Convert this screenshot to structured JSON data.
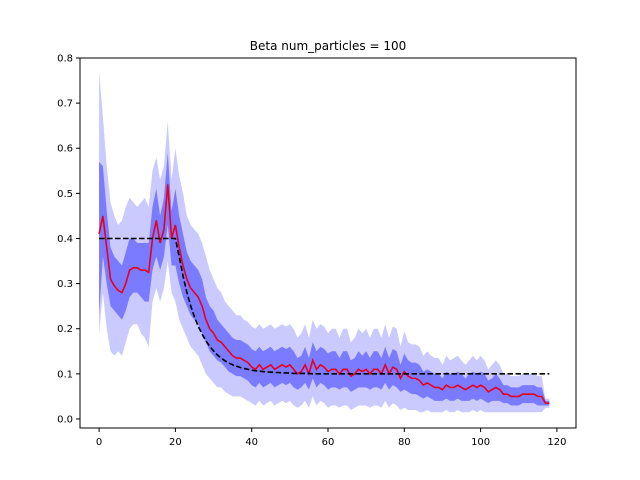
{
  "chart_data": {
    "type": "line",
    "title": "Beta  num_particles = 100",
    "xlabel": "",
    "ylabel": "",
    "xlim": [
      -5,
      125
    ],
    "ylim": [
      -0.02,
      0.8
    ],
    "xticks": [
      0,
      20,
      40,
      60,
      80,
      100,
      120
    ],
    "yticks": [
      0.0,
      0.1,
      0.2,
      0.3,
      0.4,
      0.5,
      0.6,
      0.7,
      0.8
    ],
    "grid": false,
    "legend": "none",
    "colors": {
      "estimate": "#e8001c",
      "true": "#000000",
      "inner_band": "#7b7bff",
      "outer_band": "#cacaff"
    },
    "x": [
      0,
      1,
      2,
      3,
      4,
      5,
      6,
      7,
      8,
      9,
      10,
      11,
      12,
      13,
      14,
      15,
      16,
      17,
      18,
      19,
      20,
      21,
      22,
      23,
      24,
      25,
      26,
      27,
      28,
      29,
      30,
      31,
      32,
      33,
      34,
      35,
      36,
      37,
      38,
      39,
      40,
      41,
      42,
      43,
      44,
      45,
      46,
      47,
      48,
      49,
      50,
      51,
      52,
      53,
      54,
      55,
      56,
      57,
      58,
      59,
      60,
      61,
      62,
      63,
      64,
      65,
      66,
      67,
      68,
      69,
      70,
      71,
      72,
      73,
      74,
      75,
      76,
      77,
      78,
      79,
      80,
      81,
      82,
      83,
      84,
      85,
      86,
      87,
      88,
      89,
      90,
      91,
      92,
      93,
      94,
      95,
      96,
      97,
      98,
      99,
      100,
      101,
      102,
      103,
      104,
      105,
      106,
      107,
      108,
      109,
      110,
      111,
      112,
      113,
      114,
      115,
      116,
      117,
      118
    ],
    "series": [
      {
        "role": "estimate",
        "values": [
          0.41,
          0.45,
          0.38,
          0.31,
          0.295,
          0.285,
          0.28,
          0.3,
          0.33,
          0.335,
          0.335,
          0.33,
          0.33,
          0.325,
          0.4,
          0.44,
          0.39,
          0.42,
          0.52,
          0.4,
          0.43,
          0.38,
          0.34,
          0.31,
          0.29,
          0.28,
          0.27,
          0.25,
          0.22,
          0.2,
          0.19,
          0.175,
          0.17,
          0.16,
          0.15,
          0.14,
          0.135,
          0.135,
          0.13,
          0.125,
          0.115,
          0.11,
          0.12,
          0.11,
          0.115,
          0.12,
          0.11,
          0.115,
          0.12,
          0.115,
          0.12,
          0.11,
          0.1,
          0.105,
          0.12,
          0.1,
          0.13,
          0.11,
          0.12,
          0.115,
          0.105,
          0.11,
          0.11,
          0.1,
          0.11,
          0.11,
          0.095,
          0.1,
          0.11,
          0.105,
          0.11,
          0.1,
          0.11,
          0.11,
          0.1,
          0.12,
          0.1,
          0.115,
          0.11,
          0.09,
          0.105,
          0.095,
          0.09,
          0.09,
          0.085,
          0.075,
          0.08,
          0.075,
          0.07,
          0.07,
          0.065,
          0.075,
          0.07,
          0.07,
          0.075,
          0.07,
          0.065,
          0.07,
          0.075,
          0.07,
          0.075,
          0.07,
          0.06,
          0.065,
          0.07,
          0.065,
          0.055,
          0.055,
          0.05,
          0.05,
          0.05,
          0.055,
          0.055,
          0.055,
          0.055,
          0.05,
          0.05,
          0.035,
          0.035
        ]
      },
      {
        "role": "true",
        "values": [
          0.4,
          0.4,
          0.4,
          0.4,
          0.4,
          0.4,
          0.4,
          0.4,
          0.4,
          0.4,
          0.4,
          0.4,
          0.4,
          0.4,
          0.4,
          0.4,
          0.4,
          0.4,
          0.4,
          0.4,
          0.4,
          0.36,
          0.317,
          0.281,
          0.251,
          0.226,
          0.205,
          0.188,
          0.173,
          0.161,
          0.151,
          0.142,
          0.135,
          0.129,
          0.124,
          0.12,
          0.117,
          0.114,
          0.112,
          0.11,
          0.108,
          0.107,
          0.106,
          0.105,
          0.104,
          0.104,
          0.103,
          0.103,
          0.102,
          0.102,
          0.102,
          0.101,
          0.101,
          0.101,
          0.101,
          0.101,
          0.1,
          0.1,
          0.1,
          0.1,
          0.1,
          0.1,
          0.1,
          0.1,
          0.1,
          0.1,
          0.1,
          0.1,
          0.1,
          0.1,
          0.1,
          0.1,
          0.1,
          0.1,
          0.1,
          0.1,
          0.1,
          0.1,
          0.1,
          0.1,
          0.1,
          0.1,
          0.1,
          0.1,
          0.1,
          0.1,
          0.1,
          0.1,
          0.1,
          0.1,
          0.1,
          0.1,
          0.1,
          0.1,
          0.1,
          0.1,
          0.1,
          0.1,
          0.1,
          0.1,
          0.1,
          0.1,
          0.1,
          0.1,
          0.1,
          0.1,
          0.1,
          0.1,
          0.1,
          0.1,
          0.1,
          0.1,
          0.1,
          0.1,
          0.1,
          0.1,
          0.1,
          0.1,
          0.1
        ]
      }
    ],
    "inner_band": {
      "lower": [
        0.23,
        0.36,
        0.3,
        0.25,
        0.24,
        0.23,
        0.22,
        0.24,
        0.27,
        0.28,
        0.28,
        0.27,
        0.26,
        0.26,
        0.33,
        0.36,
        0.33,
        0.36,
        0.43,
        0.34,
        0.34,
        0.3,
        0.27,
        0.25,
        0.23,
        0.22,
        0.21,
        0.19,
        0.17,
        0.15,
        0.14,
        0.13,
        0.125,
        0.115,
        0.105,
        0.1,
        0.095,
        0.095,
        0.09,
        0.085,
        0.075,
        0.07,
        0.08,
        0.07,
        0.075,
        0.08,
        0.07,
        0.075,
        0.08,
        0.075,
        0.08,
        0.07,
        0.065,
        0.07,
        0.08,
        0.065,
        0.09,
        0.07,
        0.08,
        0.075,
        0.065,
        0.07,
        0.07,
        0.065,
        0.07,
        0.07,
        0.06,
        0.065,
        0.07,
        0.07,
        0.07,
        0.065,
        0.07,
        0.07,
        0.065,
        0.08,
        0.065,
        0.075,
        0.07,
        0.06,
        0.065,
        0.06,
        0.055,
        0.055,
        0.05,
        0.045,
        0.05,
        0.045,
        0.04,
        0.04,
        0.04,
        0.045,
        0.04,
        0.04,
        0.045,
        0.04,
        0.04,
        0.04,
        0.045,
        0.04,
        0.045,
        0.04,
        0.035,
        0.04,
        0.04,
        0.04,
        0.035,
        0.035,
        0.03,
        0.03,
        0.03,
        0.035,
        0.035,
        0.035,
        0.035,
        0.03,
        0.03,
        0.03,
        0.03
      ],
      "upper": [
        0.57,
        0.56,
        0.46,
        0.38,
        0.36,
        0.35,
        0.34,
        0.37,
        0.4,
        0.4,
        0.39,
        0.39,
        0.39,
        0.39,
        0.47,
        0.51,
        0.45,
        0.49,
        0.59,
        0.46,
        0.51,
        0.45,
        0.41,
        0.37,
        0.35,
        0.34,
        0.33,
        0.31,
        0.27,
        0.25,
        0.24,
        0.22,
        0.21,
        0.2,
        0.19,
        0.18,
        0.175,
        0.175,
        0.17,
        0.165,
        0.155,
        0.15,
        0.16,
        0.15,
        0.155,
        0.16,
        0.15,
        0.155,
        0.16,
        0.155,
        0.16,
        0.15,
        0.135,
        0.14,
        0.16,
        0.135,
        0.17,
        0.15,
        0.16,
        0.155,
        0.145,
        0.15,
        0.15,
        0.135,
        0.15,
        0.15,
        0.13,
        0.135,
        0.15,
        0.14,
        0.15,
        0.135,
        0.15,
        0.15,
        0.135,
        0.16,
        0.135,
        0.155,
        0.15,
        0.12,
        0.145,
        0.13,
        0.125,
        0.125,
        0.12,
        0.105,
        0.11,
        0.105,
        0.1,
        0.1,
        0.09,
        0.105,
        0.1,
        0.1,
        0.105,
        0.1,
        0.09,
        0.1,
        0.105,
        0.1,
        0.105,
        0.1,
        0.085,
        0.09,
        0.1,
        0.09,
        0.075,
        0.075,
        0.07,
        0.07,
        0.07,
        0.075,
        0.075,
        0.075,
        0.075,
        0.07,
        0.07,
        0.04,
        0.04
      ]
    },
    "outer_band": {
      "lower": [
        0.19,
        0.28,
        0.2,
        0.15,
        0.14,
        0.15,
        0.14,
        0.17,
        0.2,
        0.21,
        0.21,
        0.19,
        0.18,
        0.16,
        0.26,
        0.29,
        0.26,
        0.29,
        0.35,
        0.28,
        0.26,
        0.22,
        0.2,
        0.18,
        0.16,
        0.15,
        0.14,
        0.12,
        0.1,
        0.09,
        0.08,
        0.07,
        0.07,
        0.06,
        0.055,
        0.05,
        0.05,
        0.05,
        0.045,
        0.04,
        0.035,
        0.03,
        0.04,
        0.03,
        0.035,
        0.04,
        0.03,
        0.035,
        0.04,
        0.035,
        0.04,
        0.03,
        0.025,
        0.03,
        0.04,
        0.025,
        0.05,
        0.03,
        0.04,
        0.035,
        0.025,
        0.03,
        0.03,
        0.025,
        0.03,
        0.03,
        0.02,
        0.025,
        0.03,
        0.03,
        0.03,
        0.025,
        0.03,
        0.03,
        0.025,
        0.04,
        0.025,
        0.035,
        0.03,
        0.02,
        0.025,
        0.02,
        0.02,
        0.02,
        0.015,
        0.015,
        0.02,
        0.015,
        0.015,
        0.015,
        0.015,
        0.02,
        0.015,
        0.015,
        0.02,
        0.015,
        0.015,
        0.015,
        0.02,
        0.015,
        0.02,
        0.015,
        0.015,
        0.015,
        0.015,
        0.015,
        0.015,
        0.015,
        0.015,
        0.015,
        0.015,
        0.015,
        0.015,
        0.015,
        0.015,
        0.015,
        0.015,
        0.025,
        0.025
      ],
      "upper": [
        0.77,
        0.67,
        0.56,
        0.48,
        0.45,
        0.43,
        0.44,
        0.47,
        0.49,
        0.48,
        0.47,
        0.48,
        0.49,
        0.47,
        0.55,
        0.58,
        0.53,
        0.56,
        0.66,
        0.53,
        0.6,
        0.54,
        0.5,
        0.45,
        0.43,
        0.42,
        0.41,
        0.39,
        0.36,
        0.33,
        0.31,
        0.29,
        0.28,
        0.26,
        0.25,
        0.24,
        0.23,
        0.23,
        0.22,
        0.215,
        0.205,
        0.2,
        0.21,
        0.2,
        0.205,
        0.21,
        0.2,
        0.205,
        0.21,
        0.205,
        0.21,
        0.2,
        0.18,
        0.19,
        0.21,
        0.18,
        0.22,
        0.2,
        0.21,
        0.205,
        0.19,
        0.2,
        0.2,
        0.18,
        0.2,
        0.2,
        0.17,
        0.18,
        0.2,
        0.19,
        0.2,
        0.18,
        0.2,
        0.2,
        0.18,
        0.21,
        0.18,
        0.205,
        0.2,
        0.16,
        0.195,
        0.17,
        0.165,
        0.165,
        0.16,
        0.14,
        0.15,
        0.14,
        0.135,
        0.135,
        0.12,
        0.14,
        0.13,
        0.135,
        0.14,
        0.13,
        0.12,
        0.13,
        0.14,
        0.13,
        0.14,
        0.13,
        0.11,
        0.12,
        0.13,
        0.12,
        0.1,
        0.1,
        0.095,
        0.095,
        0.095,
        0.1,
        0.1,
        0.1,
        0.1,
        0.095,
        0.095,
        0.045,
        0.045
      ]
    }
  }
}
